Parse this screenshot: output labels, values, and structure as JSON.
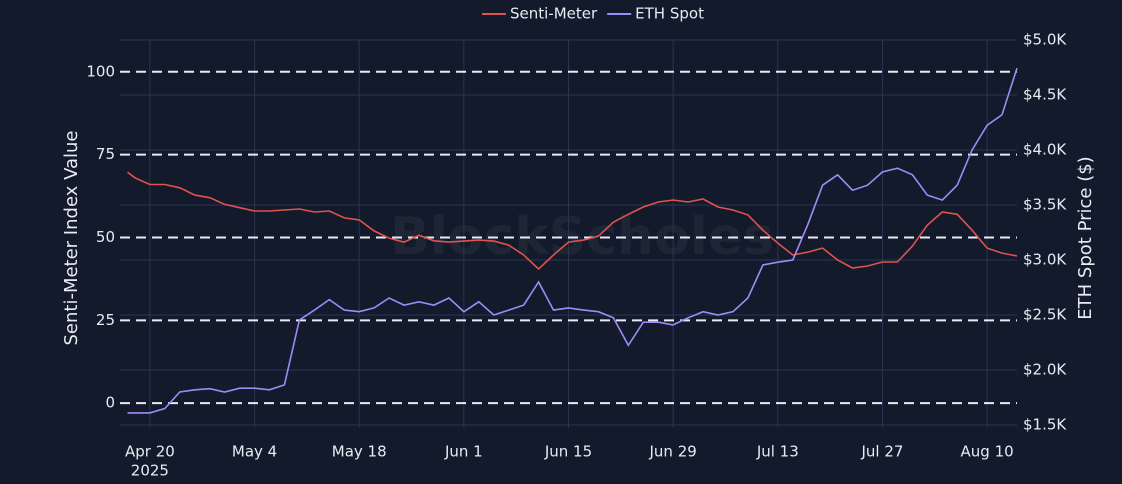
{
  "chart_data": {
    "type": "line",
    "watermark": "BlockScholes",
    "legend": "top",
    "grid": true,
    "ylabel": "Senti-Meter Index Value",
    "y2label": "ETH Spot Price ($)",
    "x": [
      "2025-04-17",
      "2025-04-18",
      "2025-04-20",
      "2025-04-22",
      "2025-04-24",
      "2025-04-26",
      "2025-04-28",
      "2025-04-30",
      "2025-05-02",
      "2025-05-04",
      "2025-05-06",
      "2025-05-08",
      "2025-05-10",
      "2025-05-12",
      "2025-05-14",
      "2025-05-16",
      "2025-05-18",
      "2025-05-20",
      "2025-05-22",
      "2025-05-24",
      "2025-05-26",
      "2025-05-28",
      "2025-05-30",
      "2025-06-01",
      "2025-06-03",
      "2025-06-05",
      "2025-06-07",
      "2025-06-09",
      "2025-06-11",
      "2025-06-13",
      "2025-06-15",
      "2025-06-17",
      "2025-06-19",
      "2025-06-21",
      "2025-06-23",
      "2025-06-25",
      "2025-06-27",
      "2025-06-29",
      "2025-07-01",
      "2025-07-03",
      "2025-07-05",
      "2025-07-07",
      "2025-07-09",
      "2025-07-11",
      "2025-07-13",
      "2025-07-15",
      "2025-07-17",
      "2025-07-19",
      "2025-07-21",
      "2025-07-23",
      "2025-07-25",
      "2025-07-27",
      "2025-07-29",
      "2025-07-31",
      "2025-08-02",
      "2025-08-04",
      "2025-08-06",
      "2025-08-08",
      "2025-08-10",
      "2025-08-12",
      "2025-08-14"
    ],
    "xlim": [
      "2025-04-16",
      "2025-08-14"
    ],
    "xticks": [
      {
        "value": "2025-04-20",
        "label": "Apr 20"
      },
      {
        "value": "2025-05-04",
        "label": "May 4"
      },
      {
        "value": "2025-05-18",
        "label": "May 18"
      },
      {
        "value": "2025-06-01",
        "label": "Jun 1"
      },
      {
        "value": "2025-06-15",
        "label": "Jun 15"
      },
      {
        "value": "2025-06-29",
        "label": "Jun 29"
      },
      {
        "value": "2025-07-13",
        "label": "Jul 13"
      },
      {
        "value": "2025-07-27",
        "label": "Jul 27"
      },
      {
        "value": "2025-08-10",
        "label": "Aug 10"
      }
    ],
    "x_year_label": "2025",
    "ylim": [
      -7.5,
      109.6
    ],
    "yticks": [
      0,
      25,
      50,
      75,
      100
    ],
    "y2lim": [
      1473,
      5000
    ],
    "y2ticks": [
      {
        "value": 1500,
        "label": "$1.5K"
      },
      {
        "value": 2000,
        "label": "$2.0K"
      },
      {
        "value": 2500,
        "label": "$2.5K"
      },
      {
        "value": 3000,
        "label": "$3.0K"
      },
      {
        "value": 3500,
        "label": "$3.5K"
      },
      {
        "value": 4000,
        "label": "$4.0K"
      },
      {
        "value": 4500,
        "label": "$4.5K"
      },
      {
        "value": 5000,
        "label": "$5.0K"
      }
    ],
    "series": [
      {
        "name": "Senti-Meter",
        "color": "#e0524d",
        "values": [
          69.7,
          68,
          66,
          66,
          65,
          62.8,
          62,
          60,
          59,
          58,
          58,
          58.3,
          58.6,
          57.7,
          58,
          55.9,
          55.3,
          52,
          49.8,
          48.6,
          50.7,
          49,
          48.6,
          48.9,
          49.2,
          48.9,
          47.7,
          44.7,
          40.5,
          44.7,
          48.6,
          49.2,
          50.4,
          54.6,
          57,
          59.2,
          60.7,
          61.3,
          60.7,
          61.6,
          59.2,
          58.3,
          56.8,
          52.2,
          48.3,
          44.7,
          45.6,
          46.8,
          43.2,
          40.8,
          41.4,
          42.6,
          42.6,
          47.4,
          53.7,
          57.7,
          57,
          52.2,
          46.8,
          45.3,
          44.4
        ]
      },
      {
        "name": "ETH Spot",
        "color": "#9d8cf5",
        "axis": "y2",
        "values": [
          1610,
          1610,
          1610,
          1650,
          1800,
          1820,
          1830,
          1800,
          1835,
          1835,
          1820,
          1865,
          2455,
          2545,
          2640,
          2545,
          2530,
          2565,
          2655,
          2590,
          2620,
          2590,
          2655,
          2530,
          2620,
          2500,
          2545,
          2590,
          2800,
          2545,
          2565,
          2545,
          2530,
          2475,
          2225,
          2435,
          2435,
          2410,
          2475,
          2530,
          2500,
          2530,
          2655,
          2955,
          2980,
          3000,
          3320,
          3680,
          3775,
          3635,
          3680,
          3800,
          3835,
          3775,
          3590,
          3545,
          3680,
          4000,
          4225,
          4320,
          4745
        ]
      }
    ]
  }
}
